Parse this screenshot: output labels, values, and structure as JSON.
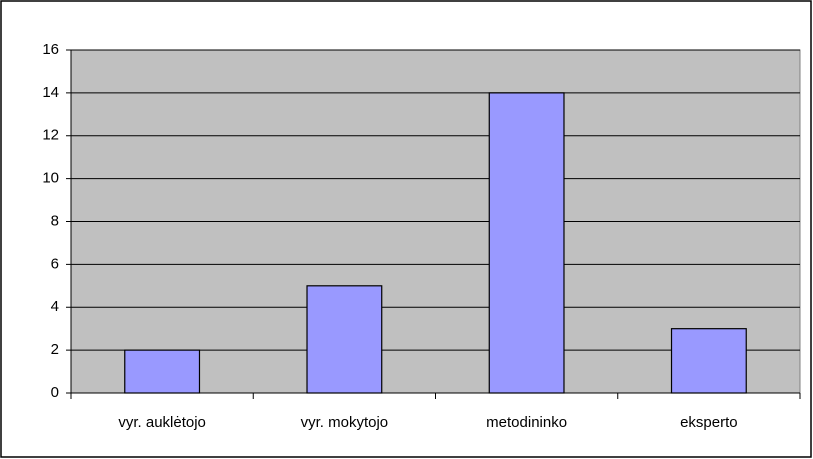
{
  "chart_data": {
    "type": "bar",
    "categories": [
      "vyr. auklėtojo",
      "vyr. mokytojo",
      "metodininko",
      "eksperto"
    ],
    "values": [
      2,
      5,
      14,
      3
    ],
    "color": "#9999ff",
    "ylim": [
      0,
      16
    ],
    "yticks": [
      0,
      2,
      4,
      6,
      8,
      10,
      12,
      14,
      16
    ],
    "grid": true
  }
}
